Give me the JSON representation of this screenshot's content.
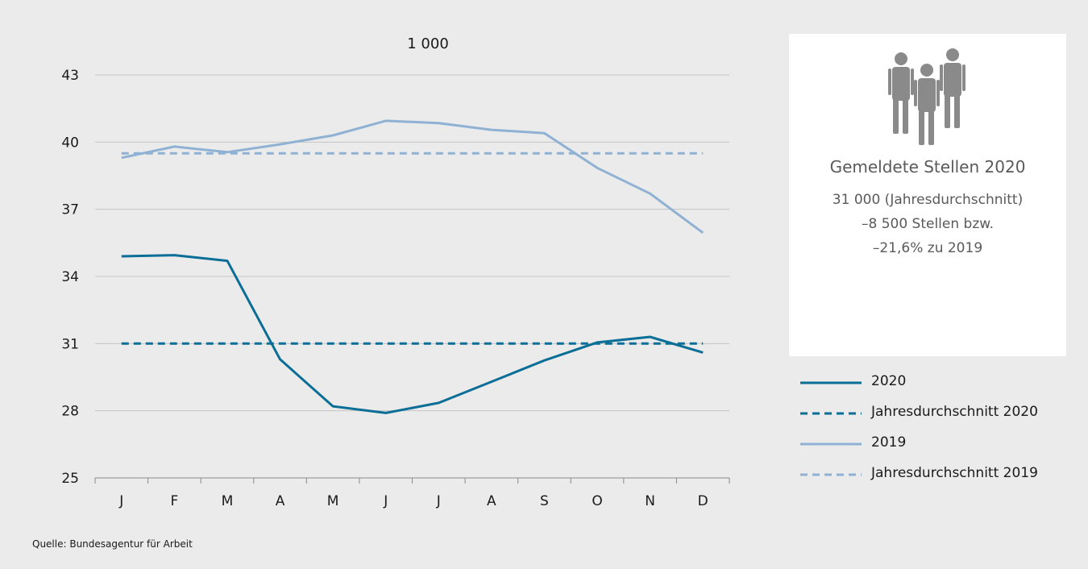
{
  "chart_data": {
    "type": "line",
    "unit_label": "1 000",
    "categories": [
      "J",
      "F",
      "M",
      "A",
      "M",
      "J",
      "J",
      "A",
      "S",
      "O",
      "N",
      "D"
    ],
    "ylim": [
      25,
      43
    ],
    "yticks": [
      "25",
      "28",
      "31",
      "34",
      "37",
      "40",
      "43"
    ],
    "ytick_values": [
      25,
      28,
      31,
      34,
      37,
      40,
      43
    ],
    "grid": true,
    "legend_position": "right",
    "series": [
      {
        "name": "2020",
        "style": "solid",
        "color": "#0a6e96",
        "values": [
          34.9,
          34.95,
          34.7,
          30.3,
          28.2,
          27.9,
          28.35,
          29.3,
          30.25,
          31.05,
          31.3,
          30.6
        ]
      },
      {
        "name": "Jahresdurchschnitt 2020",
        "style": "dashed",
        "color": "#0a6e96",
        "values": [
          31,
          31,
          31,
          31,
          31,
          31,
          31,
          31,
          31,
          31,
          31,
          31
        ]
      },
      {
        "name": "2019",
        "style": "solid",
        "color": "#8fb2d4",
        "values": [
          39.3,
          39.8,
          39.55,
          39.9,
          40.3,
          40.95,
          40.85,
          40.55,
          40.4,
          38.85,
          37.7,
          35.95
        ]
      },
      {
        "name": "Jahresdurchschnitt 2019",
        "style": "dashed",
        "color": "#8fb2d4",
        "values": [
          39.5,
          39.5,
          39.5,
          39.5,
          39.5,
          39.5,
          39.5,
          39.5,
          39.5,
          39.5,
          39.5,
          39.5
        ]
      }
    ]
  },
  "info_card": {
    "icon": "people-icon",
    "title": "Gemeldete Stellen 2020",
    "line1": "31 000 (Jahresdurchschnitt)",
    "line2": "–8 500 Stellen bzw.",
    "line3": "–21,6% zu 2019"
  },
  "source": "Quelle: Bundesagentur für Arbeit",
  "colors": {
    "background": "#ebebeb",
    "series_2020": "#0a6e96",
    "series_2019": "#8fb2d4",
    "grid": "#c4c4c4",
    "card_text": "#5a5a5a",
    "icon": "#8a8a8a"
  }
}
